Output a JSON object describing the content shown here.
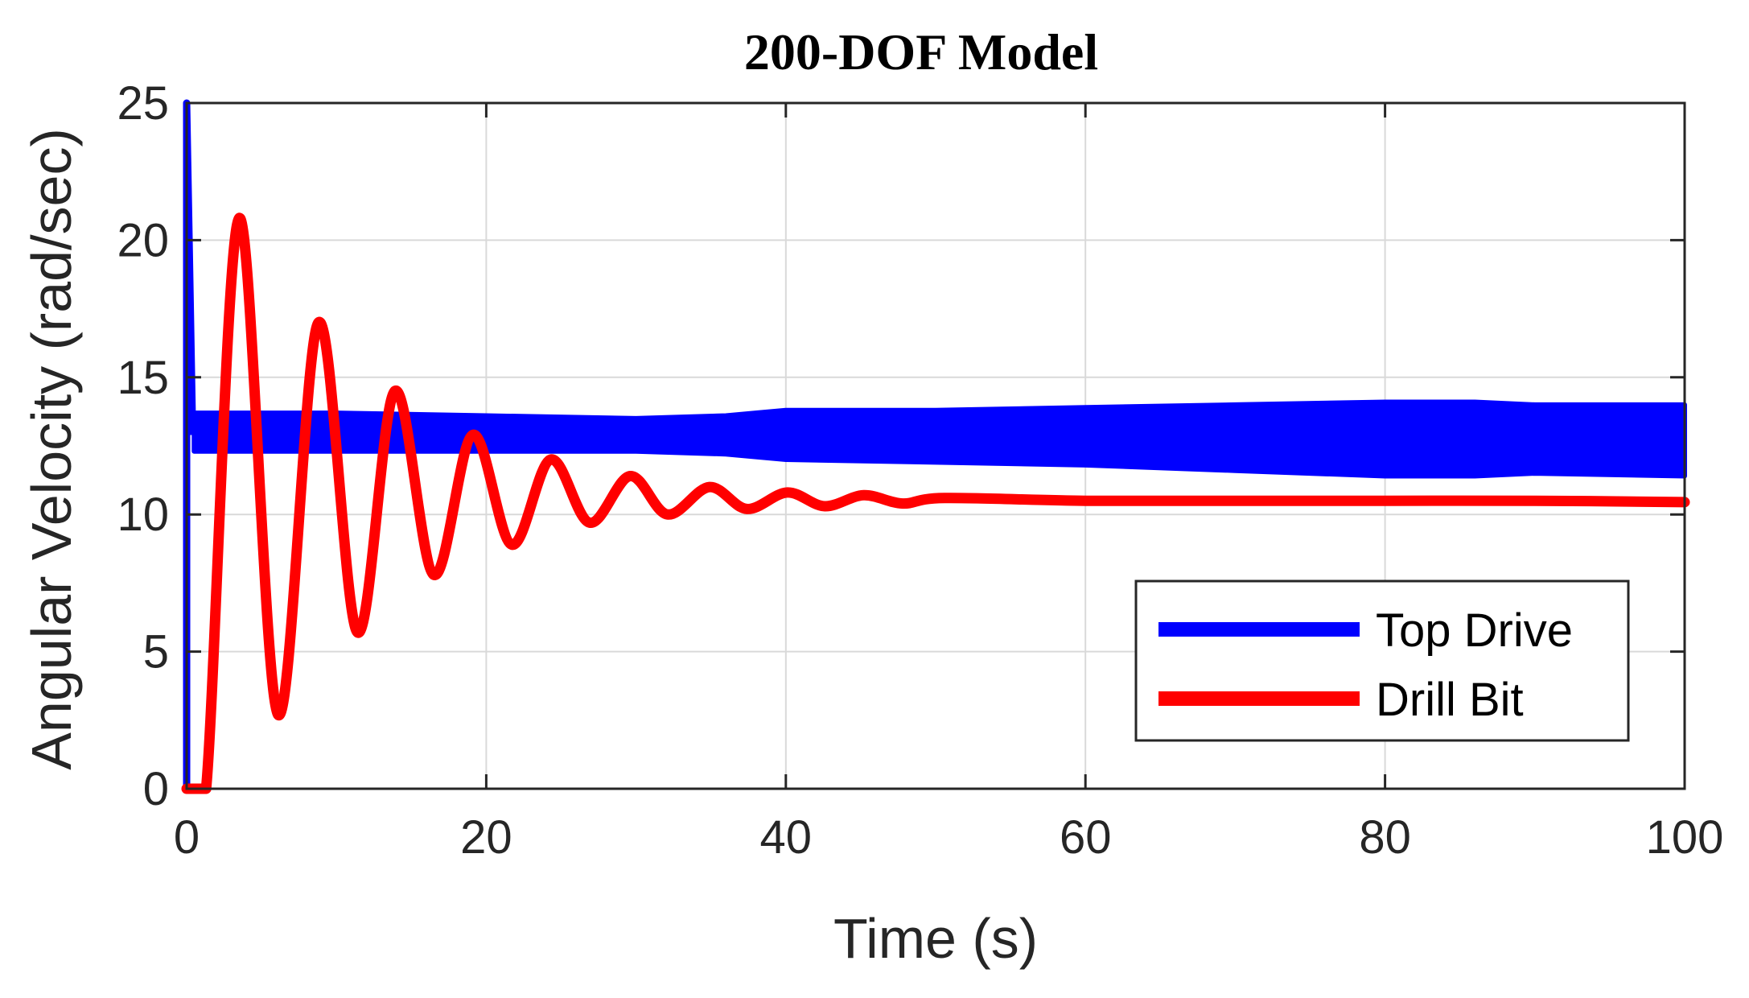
{
  "chart_data": {
    "type": "line",
    "title": "200-DOF Model",
    "xlabel": "Time (s)",
    "ylabel": "Angular Velocity (rad/sec)",
    "xlim": [
      0,
      100
    ],
    "ylim": [
      0,
      25
    ],
    "xticks": [
      0,
      20,
      40,
      60,
      80,
      100
    ],
    "yticks": [
      0,
      5,
      10,
      15,
      20,
      25
    ],
    "xtick_labels": [
      "0",
      "20",
      "40",
      "60",
      "80",
      "100"
    ],
    "ytick_labels": [
      "0",
      "5",
      "10",
      "15",
      "20",
      "25"
    ],
    "grid": true,
    "legend_position": "lower-right",
    "series": [
      {
        "name": "Top Drive",
        "color": "#0000ff",
        "description": "rapid oscillation band",
        "spike": [
          [
            0,
            0
          ],
          [
            0,
            25
          ],
          [
            0.4,
            12.9
          ]
        ],
        "band": {
          "x": [
            0.5,
            10,
            20,
            30,
            36,
            40,
            50,
            60,
            70,
            80,
            86,
            90,
            100
          ],
          "upper": [
            13.7,
            13.7,
            13.6,
            13.5,
            13.6,
            13.8,
            13.8,
            13.9,
            14.0,
            14.1,
            14.1,
            14.0,
            14.0
          ],
          "lower": [
            12.3,
            12.3,
            12.3,
            12.3,
            12.2,
            12.0,
            11.9,
            11.8,
            11.6,
            11.4,
            11.4,
            11.5,
            11.4
          ]
        }
      },
      {
        "name": "Drill Bit",
        "color": "#ff0000",
        "x": [
          0,
          1.3,
          3.5,
          6.1,
          8.8,
          11.4,
          13.9,
          16.5,
          19.1,
          21.7,
          24.3,
          26.9,
          29.6,
          32.1,
          34.9,
          37.4,
          40.1,
          42.6,
          45.2,
          47.8,
          50.6,
          60,
          70,
          80,
          90,
          100
        ],
        "y": [
          0,
          0,
          20.8,
          2.7,
          17.0,
          5.7,
          14.5,
          7.8,
          12.9,
          8.9,
          12.0,
          9.7,
          11.4,
          10.0,
          11.0,
          10.2,
          10.8,
          10.3,
          10.7,
          10.4,
          10.6,
          10.5,
          10.5,
          10.5,
          10.5,
          10.45
        ]
      }
    ]
  }
}
